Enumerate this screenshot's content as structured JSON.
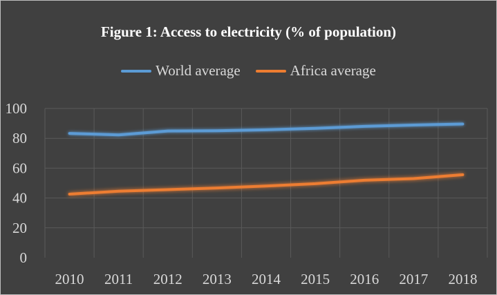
{
  "chart_data": {
    "type": "line",
    "title": "Figure 1: Access to electricity (% of population)",
    "xlabel": "",
    "ylabel": "",
    "x": [
      "2010",
      "2011",
      "2012",
      "2013",
      "2014",
      "2015",
      "2016",
      "2017",
      "2018"
    ],
    "ylim": [
      0,
      100
    ],
    "yticks": [
      "0",
      "20",
      "40",
      "60",
      "80",
      "100"
    ],
    "grid": true,
    "legend_position": "top",
    "series": [
      {
        "name": "World average",
        "color": "#5b9bd5",
        "values": [
          83.3,
          82.3,
          84.9,
          85.1,
          85.7,
          86.7,
          88.0,
          88.9,
          89.6
        ]
      },
      {
        "name": "Africa average",
        "color": "#ed7d31",
        "values": [
          42.6,
          44.6,
          45.6,
          46.7,
          48.0,
          49.6,
          51.9,
          53.0,
          55.6
        ]
      }
    ]
  }
}
